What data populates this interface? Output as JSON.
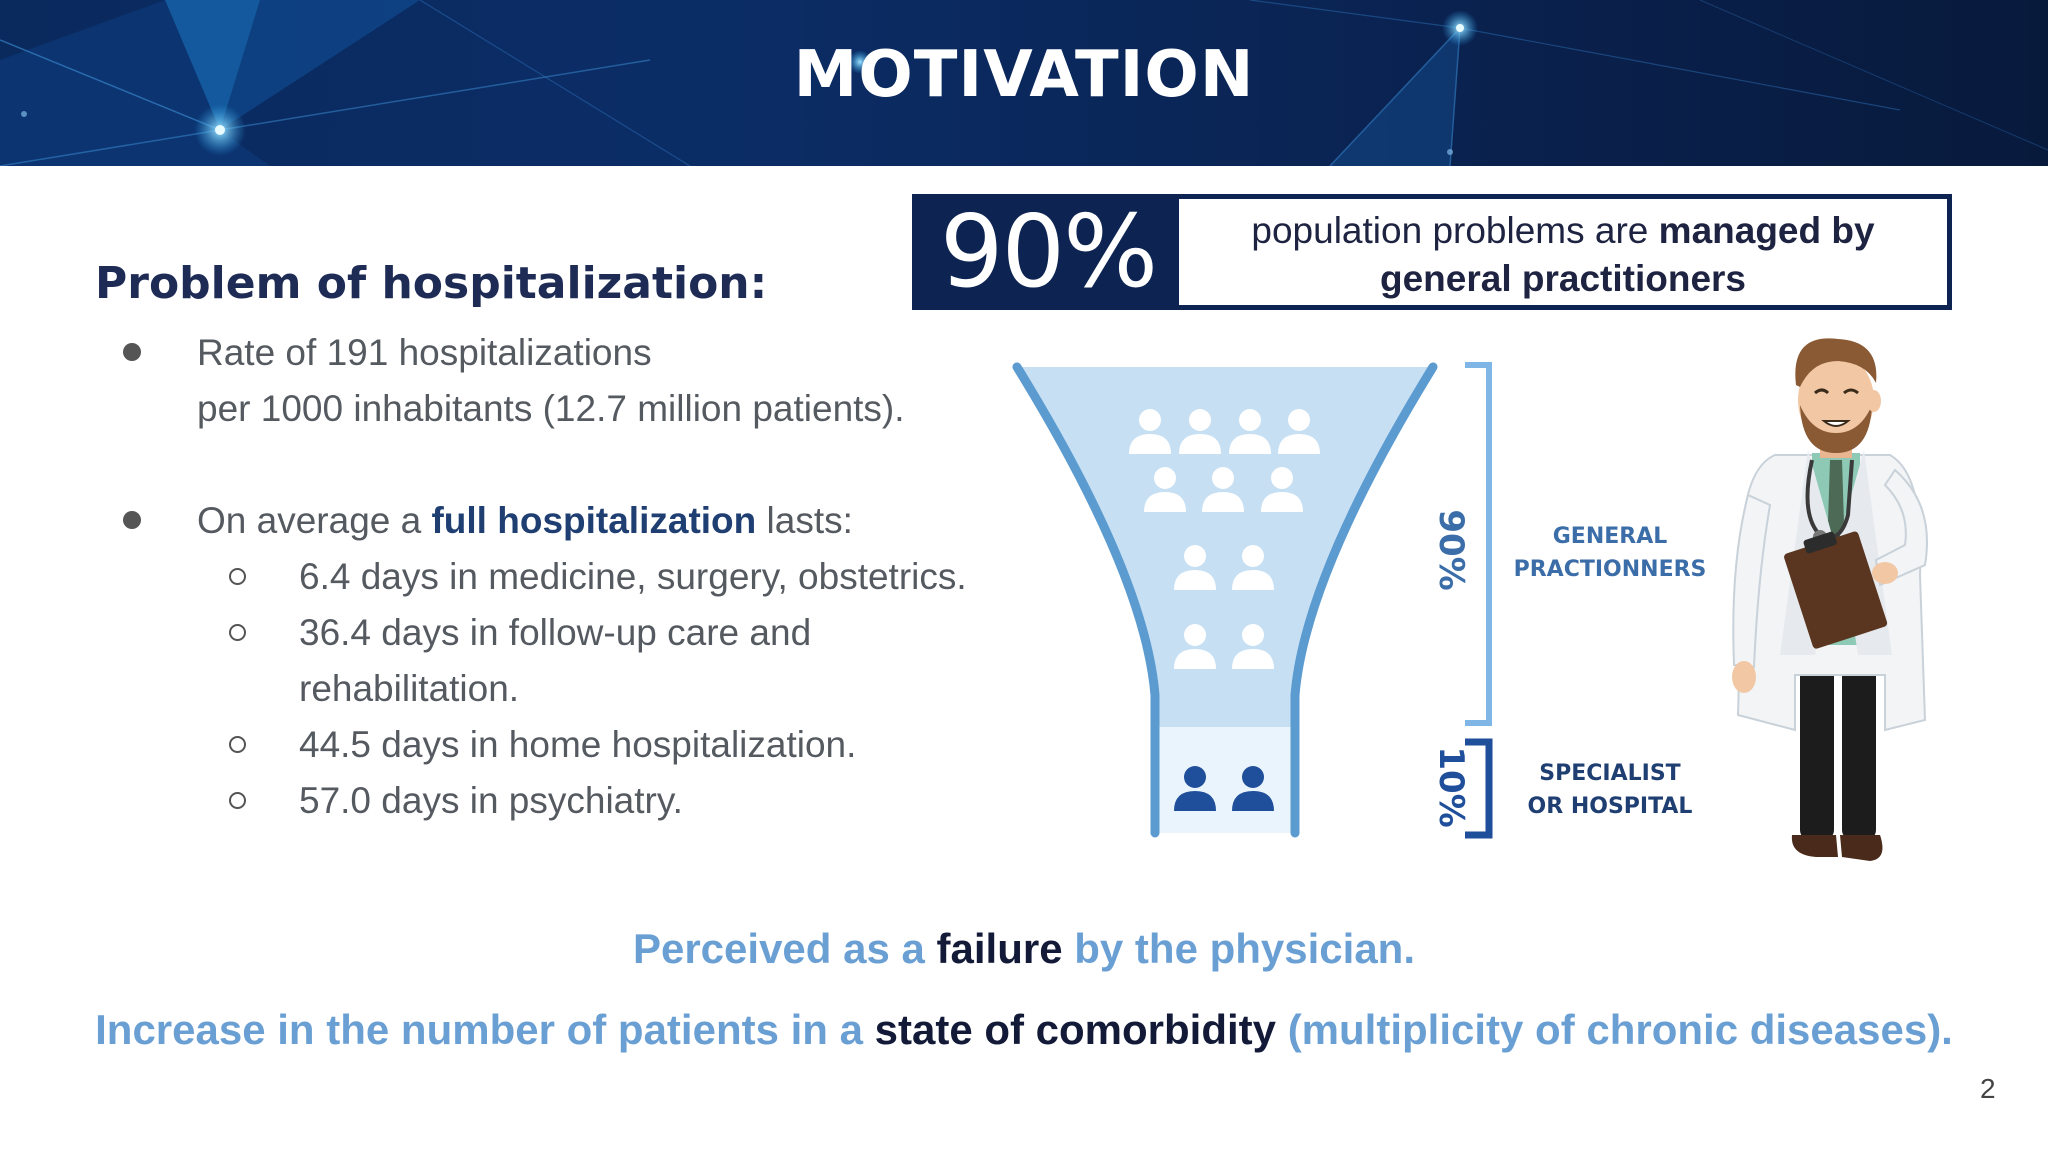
{
  "header": {
    "title": "MOTIVATION"
  },
  "problem": {
    "heading": "Problem of hospitalization:",
    "bullet1": {
      "line1": "Rate of 191 hospitalizations",
      "line2": "per 1000 inhabitants (12.7 million patients)."
    },
    "bullet2": {
      "prefix": "On average a ",
      "highlight": "full hospitalization",
      "suffix": " lasts:",
      "subitems": [
        "6.4 days in medicine, surgery, obstetrics.",
        "36.4 days in follow-up care and",
        "rehabilitation.",
        "44.5 days in home hospitalization.",
        "57.0 days in psychiatry."
      ]
    }
  },
  "stat": {
    "value": "90%",
    "text_plain": "population problems are ",
    "text_bold1": "managed by",
    "text_bold2": "general practitioners"
  },
  "infographic": {
    "top_percent": "90%",
    "bottom_percent": "10%",
    "top_label_line1": "GENERAL",
    "top_label_line2": "PRACTIONNERS",
    "bottom_label_line1": "SPECIALIST",
    "bottom_label_line2": "OR HOSPITAL",
    "colors": {
      "funnel_fill": "#c6dff3",
      "funnel_stroke": "#5b9bd0",
      "bracket_top": "#7fb6e6",
      "bracket_bottom": "#1f4e9a",
      "people_bottom": "#1f4e9a"
    }
  },
  "footer": {
    "line1_a": "Perceived as a ",
    "line1_b": "failure",
    "line1_c": " by the physician.",
    "line2_a": "Increase in the number of patients in a ",
    "line2_b": "state of comorbidity",
    "line2_c": " (multiplicity of chronic diseases).",
    "page_number": "2"
  }
}
